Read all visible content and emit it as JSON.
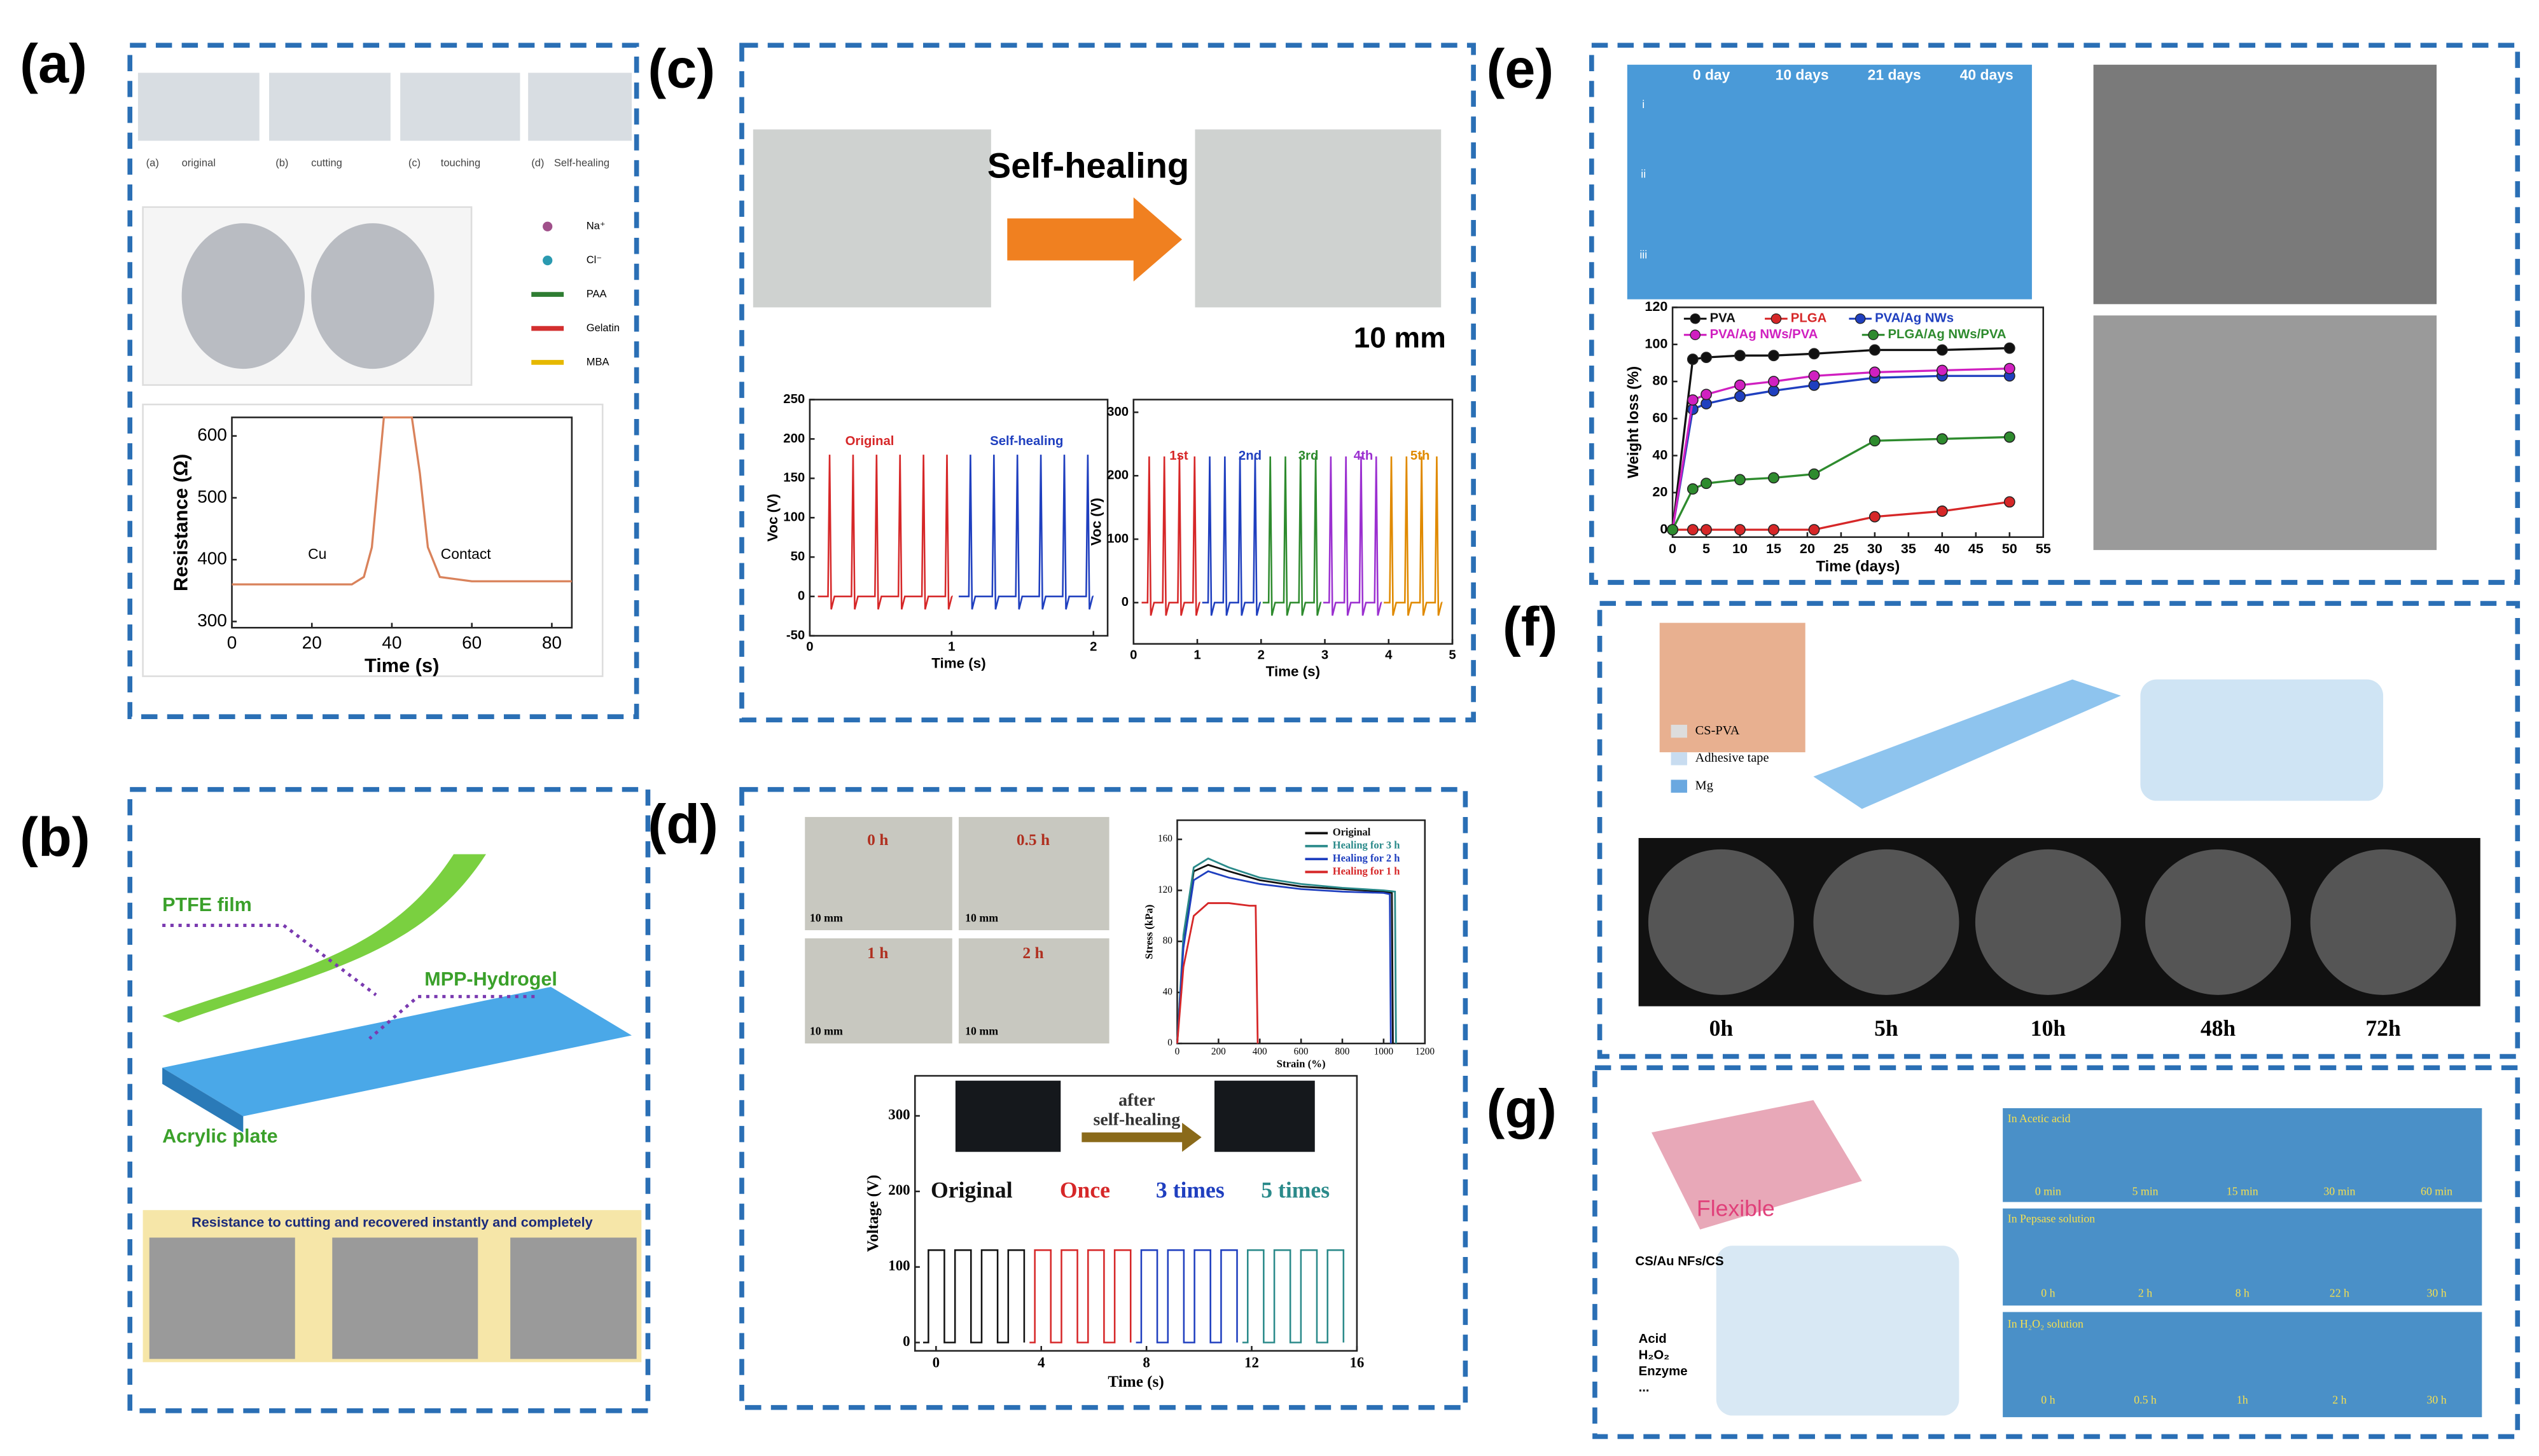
{
  "panels": [
    {
      "label": "(a)",
      "captions": [
        "(a)",
        "original",
        "(b)",
        "cutting",
        "(c)",
        "touching",
        "(d)",
        "Self-healing"
      ],
      "legend": [
        "Na⁺",
        "Cl⁻",
        "PAA",
        "Gelatin",
        "MBA"
      ],
      "legend_colors": [
        "#a0508a",
        "#2a9ab0",
        "#2e7d32",
        "#d32f2f",
        "#e6b800"
      ],
      "chart": {
        "type": "line",
        "x_label": "Time (s)",
        "y_label": "Resistance (Ω)",
        "annotations": [
          "Cu",
          "Contact"
        ],
        "x": [
          0,
          30,
          33,
          35,
          37,
          38,
          45,
          47,
          49,
          52,
          60,
          85
        ],
        "series": [
          {
            "color": "#d9825b",
            "values": [
              360,
              360,
              372,
              420,
              560,
              630,
              630,
              540,
              420,
              372,
              365,
              365
            ]
          }
        ],
        "xlim": [
          0,
          85
        ],
        "ylim": [
          290,
          630
        ],
        "xticks": [
          0,
          20,
          40,
          60,
          80
        ],
        "yticks": [
          300,
          400,
          500,
          600
        ]
      }
    },
    {
      "label": "(b)",
      "texts": [
        "PTFE film",
        "MPP-Hydrogel",
        "Acrylic plate"
      ],
      "banner": "Resistance to cutting and recovered instantly and completely"
    },
    {
      "label": "(c)",
      "title": "Self-healing",
      "scale": "10 mm",
      "charts": [
        {
          "type": "line",
          "x_label": "Time (s)",
          "y_label": "Voc (V)",
          "series_labels": [
            "Original",
            "Self-healing"
          ],
          "label_colors": [
            "#d62728",
            "#1f3fbf"
          ],
          "xlim": [
            0,
            2.1
          ],
          "ylim": [
            -50,
            250
          ],
          "xticks": [
            0,
            1,
            2
          ],
          "yticks": [
            -50,
            0,
            50,
            100,
            150,
            200,
            250
          ]
        },
        {
          "type": "line",
          "x_label": "Time (s)",
          "y_label": "Voc (V)",
          "series_labels": [
            "1st",
            "2nd",
            "3rd",
            "4th",
            "5th"
          ],
          "label_colors": [
            "#d62728",
            "#1f3fbf",
            "#2e8b2e",
            "#9b30d0",
            "#e08a00"
          ],
          "xlim": [
            0,
            5
          ],
          "ylim": [
            -65,
            320
          ],
          "xticks": [
            0,
            1,
            2,
            3,
            4,
            5
          ],
          "yticks": [
            0,
            100,
            200,
            300
          ]
        }
      ]
    },
    {
      "label": "(d)",
      "photo_labels": [
        "0 h",
        "0.5 h",
        "1 h",
        "2 h"
      ],
      "scale": "10 mm",
      "stress": {
        "type": "line",
        "x_label": "Strain (%)",
        "y_label": "Stress (kPa)",
        "xlim": [
          0,
          1200
        ],
        "ylim": [
          0,
          175
        ],
        "xticks": [
          0,
          200,
          400,
          600,
          800,
          1000,
          1200
        ],
        "yticks": [
          0,
          40,
          80,
          120,
          160
        ],
        "series": [
          {
            "name": "Original",
            "color": "#111111",
            "x": [
              0,
              30,
              80,
              150,
              250,
              400,
              600,
              800,
              1000,
              1040,
              1045
            ],
            "values": [
              0,
              80,
              135,
              140,
              135,
              128,
              123,
              121,
              119,
              118,
              0
            ]
          },
          {
            "name": "Healing for 3 h",
            "color": "#2a8a8a",
            "x": [
              0,
              30,
              80,
              150,
              250,
              400,
              600,
              800,
              1000,
              1055,
              1060
            ],
            "values": [
              0,
              85,
              138,
              145,
              138,
              130,
              125,
              122,
              120,
              119,
              0
            ]
          },
          {
            "name": "Healing for 2 h",
            "color": "#1f3fbf",
            "x": [
              0,
              30,
              80,
              150,
              250,
              400,
              600,
              800,
              1000,
              1030,
              1035
            ],
            "values": [
              0,
              75,
              128,
              135,
              130,
              125,
              121,
              119,
              118,
              117,
              0
            ]
          },
          {
            "name": "Healing for 1 h",
            "color": "#d62728",
            "x": [
              0,
              30,
              80,
              150,
              250,
              350,
              380,
              390
            ],
            "values": [
              0,
              60,
              100,
              110,
              110,
              108,
              108,
              0
            ]
          }
        ]
      },
      "voltage": {
        "type": "line",
        "x_label": "Time (s)",
        "y_label": "Voltage (V)",
        "arrow_text": [
          "after",
          "self-healing"
        ],
        "series_labels": [
          "Original",
          "Once",
          "3 times",
          "5 times"
        ],
        "label_colors": [
          "#111111",
          "#d62728",
          "#1f3fbf",
          "#2a8a8a"
        ],
        "xlim": [
          -0.8,
          16
        ],
        "ylim": [
          -11,
          353
        ],
        "xticks": [
          0,
          4,
          8,
          12,
          16
        ],
        "yticks": [
          0,
          100,
          200,
          300
        ]
      }
    },
    {
      "label": "(e)",
      "columns": [
        "0 day",
        "10 days",
        "21 days",
        "40 days"
      ],
      "rows": [
        "i",
        "ii",
        "iii"
      ],
      "chart": {
        "type": "line",
        "x_label": "Time (days)",
        "y_label": "Weight loss (%)",
        "xlim": [
          0,
          55
        ],
        "ylim": [
          -4,
          120
        ],
        "xticks": [
          0,
          5,
          10,
          15,
          20,
          25,
          30,
          35,
          40,
          45,
          50,
          55
        ],
        "yticks": [
          0,
          20,
          40,
          60,
          80,
          100,
          120
        ],
        "x": [
          0,
          3,
          5,
          10,
          15,
          21,
          30,
          40,
          50
        ],
        "series": [
          {
            "name": "PVA",
            "color": "#111111",
            "values": [
              0,
              92,
              93,
              94,
              94,
              95,
              97,
              97,
              98
            ]
          },
          {
            "name": "PLGA",
            "color": "#d62728",
            "values": [
              0,
              0,
              0,
              0,
              0,
              0,
              7,
              10,
              15
            ]
          },
          {
            "name": "PVA/Ag NWs",
            "color": "#1f3fbf",
            "values": [
              0,
              65,
              68,
              72,
              75,
              78,
              82,
              83,
              83
            ]
          },
          {
            "name": "PVA/Ag NWs/PVA",
            "color": "#d020c0",
            "values": [
              0,
              70,
              73,
              78,
              80,
              83,
              85,
              86,
              87
            ]
          },
          {
            "name": "PLGA/Ag NWs/PVA",
            "color": "#2e8b2e",
            "values": [
              0,
              22,
              25,
              27,
              28,
              30,
              48,
              49,
              50
            ]
          }
        ]
      }
    },
    {
      "label": "(f)",
      "legend": [
        "CS-PVA",
        "Adhesive tape",
        "Mg"
      ],
      "times": [
        "0h",
        "5h",
        "10h",
        "48h",
        "72h"
      ]
    },
    {
      "label": "(g)",
      "flexible": "Flexible",
      "material": "CS/Au NFs/CS",
      "media": [
        "Acid",
        "H₂O₂",
        "Enzyme",
        "..."
      ],
      "rows": [
        {
          "name": "In Acetic acid",
          "times": [
            "0 min",
            "5 min",
            "15 min",
            "30 min",
            "60 min"
          ]
        },
        {
          "name": "In Pepsase solution",
          "times": [
            "0 h",
            "2 h",
            "8 h",
            "22 h",
            "30 h"
          ]
        },
        {
          "name": "In H₂O₂ solution",
          "times": [
            "0 h",
            "0.5 h",
            "1h",
            "2 h",
            "30 h"
          ]
        }
      ]
    }
  ]
}
